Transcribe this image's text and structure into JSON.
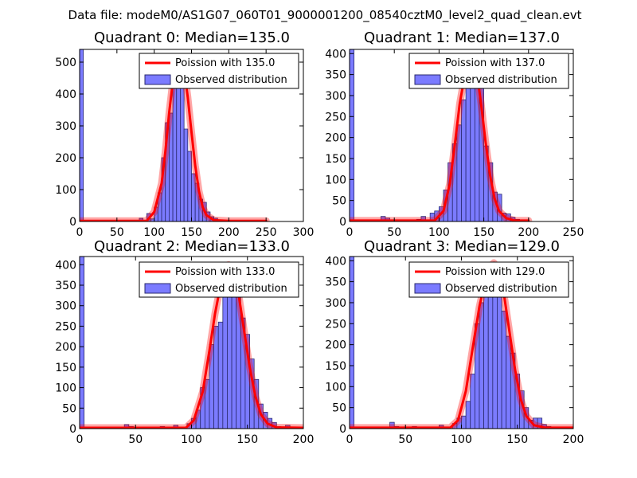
{
  "figure": {
    "suptitle": "Data file: modeM0/AS1G07_060T01_9000001200_08540cztM0_level2_quad_clean.evt"
  },
  "colors": {
    "bar_fill": "#7b7bff",
    "bar_edge": "#2a2a6e",
    "poisson_line": "#ff0000",
    "axes": "#000000"
  },
  "chart_data": [
    {
      "type": "bar",
      "title": "Quadrant 0: Median=135.0",
      "median": 135.0,
      "xlim": [
        0,
        300
      ],
      "ylim": [
        0,
        540
      ],
      "xticks": [
        0,
        50,
        100,
        150,
        200,
        250,
        300
      ],
      "yticks": [
        0,
        100,
        200,
        300,
        400,
        500
      ],
      "bin_width": 5,
      "bins": [
        {
          "x": 0,
          "y": 540
        },
        {
          "x": 20,
          "y": 2
        },
        {
          "x": 35,
          "y": 4
        },
        {
          "x": 45,
          "y": 3
        },
        {
          "x": 70,
          "y": 4
        },
        {
          "x": 80,
          "y": 10
        },
        {
          "x": 90,
          "y": 25
        },
        {
          "x": 95,
          "y": 8
        },
        {
          "x": 100,
          "y": 45
        },
        {
          "x": 105,
          "y": 90
        },
        {
          "x": 110,
          "y": 200
        },
        {
          "x": 115,
          "y": 310
        },
        {
          "x": 120,
          "y": 340
        },
        {
          "x": 125,
          "y": 500
        },
        {
          "x": 130,
          "y": 460
        },
        {
          "x": 135,
          "y": 420
        },
        {
          "x": 140,
          "y": 290
        },
        {
          "x": 145,
          "y": 220
        },
        {
          "x": 150,
          "y": 150
        },
        {
          "x": 155,
          "y": 120
        },
        {
          "x": 160,
          "y": 70
        },
        {
          "x": 165,
          "y": 60
        },
        {
          "x": 170,
          "y": 30
        },
        {
          "x": 175,
          "y": 15
        },
        {
          "x": 180,
          "y": 10
        },
        {
          "x": 185,
          "y": 5
        },
        {
          "x": 195,
          "y": 3
        }
      ],
      "poisson": {
        "label": "Poission with 135.0",
        "points": [
          {
            "x": 0,
            "y": 2
          },
          {
            "x": 90,
            "y": 2
          },
          {
            "x": 100,
            "y": 30
          },
          {
            "x": 110,
            "y": 120
          },
          {
            "x": 115,
            "y": 220
          },
          {
            "x": 120,
            "y": 340
          },
          {
            "x": 125,
            "y": 440
          },
          {
            "x": 130,
            "y": 500
          },
          {
            "x": 135,
            "y": 512
          },
          {
            "x": 140,
            "y": 480
          },
          {
            "x": 145,
            "y": 390
          },
          {
            "x": 150,
            "y": 280
          },
          {
            "x": 155,
            "y": 175
          },
          {
            "x": 160,
            "y": 95
          },
          {
            "x": 165,
            "y": 45
          },
          {
            "x": 170,
            "y": 20
          },
          {
            "x": 180,
            "y": 4
          },
          {
            "x": 200,
            "y": 2
          },
          {
            "x": 250,
            "y": 2
          }
        ]
      },
      "legend": {
        "line_label": "Poission with 135.0",
        "bar_label": "Observed distribution",
        "position": "upper right"
      }
    },
    {
      "type": "bar",
      "title": "Quadrant 1: Median=137.0",
      "median": 137.0,
      "xlim": [
        0,
        250
      ],
      "ylim": [
        0,
        410
      ],
      "xticks": [
        0,
        50,
        100,
        150,
        200,
        250
      ],
      "yticks": [
        0,
        50,
        100,
        150,
        200,
        250,
        300,
        350,
        400
      ],
      "bin_width": 5,
      "bins": [
        {
          "x": 0,
          "y": 410
        },
        {
          "x": 35,
          "y": 12
        },
        {
          "x": 40,
          "y": 8
        },
        {
          "x": 50,
          "y": 3
        },
        {
          "x": 75,
          "y": 5
        },
        {
          "x": 80,
          "y": 12
        },
        {
          "x": 90,
          "y": 20
        },
        {
          "x": 95,
          "y": 25
        },
        {
          "x": 100,
          "y": 35
        },
        {
          "x": 105,
          "y": 75
        },
        {
          "x": 110,
          "y": 140
        },
        {
          "x": 115,
          "y": 185
        },
        {
          "x": 120,
          "y": 230
        },
        {
          "x": 125,
          "y": 290
        },
        {
          "x": 130,
          "y": 320
        },
        {
          "x": 135,
          "y": 390
        },
        {
          "x": 140,
          "y": 340
        },
        {
          "x": 145,
          "y": 330
        },
        {
          "x": 150,
          "y": 180
        },
        {
          "x": 155,
          "y": 140
        },
        {
          "x": 160,
          "y": 70
        },
        {
          "x": 165,
          "y": 65
        },
        {
          "x": 170,
          "y": 20
        },
        {
          "x": 175,
          "y": 18
        },
        {
          "x": 180,
          "y": 10
        },
        {
          "x": 185,
          "y": 5
        },
        {
          "x": 190,
          "y": 3
        }
      ],
      "poisson": {
        "label": "Poission with 137.0",
        "points": [
          {
            "x": 0,
            "y": 2
          },
          {
            "x": 95,
            "y": 2
          },
          {
            "x": 105,
            "y": 25
          },
          {
            "x": 112,
            "y": 90
          },
          {
            "x": 118,
            "y": 190
          },
          {
            "x": 123,
            "y": 280
          },
          {
            "x": 128,
            "y": 340
          },
          {
            "x": 133,
            "y": 380
          },
          {
            "x": 137,
            "y": 390
          },
          {
            "x": 142,
            "y": 360
          },
          {
            "x": 147,
            "y": 280
          },
          {
            "x": 152,
            "y": 190
          },
          {
            "x": 157,
            "y": 110
          },
          {
            "x": 162,
            "y": 55
          },
          {
            "x": 167,
            "y": 25
          },
          {
            "x": 175,
            "y": 8
          },
          {
            "x": 185,
            "y": 2
          },
          {
            "x": 200,
            "y": 2
          }
        ]
      },
      "legend": {
        "line_label": "Poission with 137.0",
        "bar_label": "Observed distribution",
        "position": "upper right"
      }
    },
    {
      "type": "bar",
      "title": "Quadrant 2: Median=133.0",
      "median": 133.0,
      "xlim": [
        0,
        200
      ],
      "ylim": [
        0,
        420
      ],
      "xticks": [
        0,
        50,
        100,
        150,
        200
      ],
      "yticks": [
        0,
        50,
        100,
        150,
        200,
        250,
        300,
        350,
        400
      ],
      "bin_width": 4,
      "bins": [
        {
          "x": 0,
          "y": 420
        },
        {
          "x": 40,
          "y": 10
        },
        {
          "x": 44,
          "y": 5
        },
        {
          "x": 72,
          "y": 5
        },
        {
          "x": 84,
          "y": 8
        },
        {
          "x": 88,
          "y": 4
        },
        {
          "x": 96,
          "y": 12
        },
        {
          "x": 100,
          "y": 25
        },
        {
          "x": 104,
          "y": 45
        },
        {
          "x": 108,
          "y": 100
        },
        {
          "x": 112,
          "y": 120
        },
        {
          "x": 116,
          "y": 205
        },
        {
          "x": 120,
          "y": 250
        },
        {
          "x": 124,
          "y": 260
        },
        {
          "x": 128,
          "y": 340
        },
        {
          "x": 132,
          "y": 400
        },
        {
          "x": 136,
          "y": 370
        },
        {
          "x": 140,
          "y": 330
        },
        {
          "x": 144,
          "y": 270
        },
        {
          "x": 148,
          "y": 230
        },
        {
          "x": 152,
          "y": 170
        },
        {
          "x": 156,
          "y": 120
        },
        {
          "x": 160,
          "y": 60
        },
        {
          "x": 164,
          "y": 40
        },
        {
          "x": 168,
          "y": 25
        },
        {
          "x": 172,
          "y": 15
        },
        {
          "x": 176,
          "y": 5
        },
        {
          "x": 184,
          "y": 8
        },
        {
          "x": 188,
          "y": 3
        }
      ],
      "poisson": {
        "label": "Poission with 133.0",
        "points": [
          {
            "x": 0,
            "y": 2
          },
          {
            "x": 95,
            "y": 2
          },
          {
            "x": 102,
            "y": 20
          },
          {
            "x": 110,
            "y": 90
          },
          {
            "x": 116,
            "y": 190
          },
          {
            "x": 121,
            "y": 280
          },
          {
            "x": 126,
            "y": 350
          },
          {
            "x": 130,
            "y": 390
          },
          {
            "x": 133,
            "y": 400
          },
          {
            "x": 137,
            "y": 390
          },
          {
            "x": 142,
            "y": 330
          },
          {
            "x": 147,
            "y": 240
          },
          {
            "x": 152,
            "y": 150
          },
          {
            "x": 157,
            "y": 80
          },
          {
            "x": 162,
            "y": 35
          },
          {
            "x": 168,
            "y": 12
          },
          {
            "x": 176,
            "y": 3
          },
          {
            "x": 200,
            "y": 2
          }
        ]
      },
      "legend": {
        "line_label": "Poission with 133.0",
        "bar_label": "Observed distribution",
        "position": "upper right"
      }
    },
    {
      "type": "bar",
      "title": "Quadrant 3: Median=129.0",
      "median": 129.0,
      "xlim": [
        0,
        200
      ],
      "ylim": [
        0,
        410
      ],
      "xticks": [
        0,
        50,
        100,
        150,
        200
      ],
      "yticks": [
        0,
        50,
        100,
        150,
        200,
        250,
        300,
        350,
        400
      ],
      "bin_width": 4,
      "bins": [
        {
          "x": 0,
          "y": 410
        },
        {
          "x": 36,
          "y": 15
        },
        {
          "x": 40,
          "y": 5
        },
        {
          "x": 56,
          "y": 5
        },
        {
          "x": 68,
          "y": 3
        },
        {
          "x": 80,
          "y": 8
        },
        {
          "x": 92,
          "y": 12
        },
        {
          "x": 96,
          "y": 25
        },
        {
          "x": 100,
          "y": 30
        },
        {
          "x": 104,
          "y": 65
        },
        {
          "x": 108,
          "y": 130
        },
        {
          "x": 112,
          "y": 250
        },
        {
          "x": 116,
          "y": 300
        },
        {
          "x": 120,
          "y": 330
        },
        {
          "x": 124,
          "y": 360
        },
        {
          "x": 128,
          "y": 395
        },
        {
          "x": 132,
          "y": 350
        },
        {
          "x": 136,
          "y": 280
        },
        {
          "x": 140,
          "y": 220
        },
        {
          "x": 144,
          "y": 180
        },
        {
          "x": 148,
          "y": 130
        },
        {
          "x": 152,
          "y": 90
        },
        {
          "x": 156,
          "y": 50
        },
        {
          "x": 160,
          "y": 20
        },
        {
          "x": 164,
          "y": 25
        },
        {
          "x": 168,
          "y": 25
        },
        {
          "x": 172,
          "y": 10
        },
        {
          "x": 176,
          "y": 5
        }
      ],
      "poisson": {
        "label": "Poission with 129.0",
        "points": [
          {
            "x": 0,
            "y": 2
          },
          {
            "x": 90,
            "y": 2
          },
          {
            "x": 97,
            "y": 20
          },
          {
            "x": 104,
            "y": 90
          },
          {
            "x": 110,
            "y": 190
          },
          {
            "x": 116,
            "y": 290
          },
          {
            "x": 121,
            "y": 350
          },
          {
            "x": 125,
            "y": 385
          },
          {
            "x": 129,
            "y": 395
          },
          {
            "x": 133,
            "y": 380
          },
          {
            "x": 138,
            "y": 320
          },
          {
            "x": 143,
            "y": 230
          },
          {
            "x": 148,
            "y": 140
          },
          {
            "x": 153,
            "y": 70
          },
          {
            "x": 158,
            "y": 30
          },
          {
            "x": 165,
            "y": 8
          },
          {
            "x": 175,
            "y": 2
          },
          {
            "x": 200,
            "y": 2
          }
        ]
      },
      "legend": {
        "line_label": "Poission with 129.0",
        "bar_label": "Observed distribution",
        "position": "upper right"
      }
    }
  ]
}
